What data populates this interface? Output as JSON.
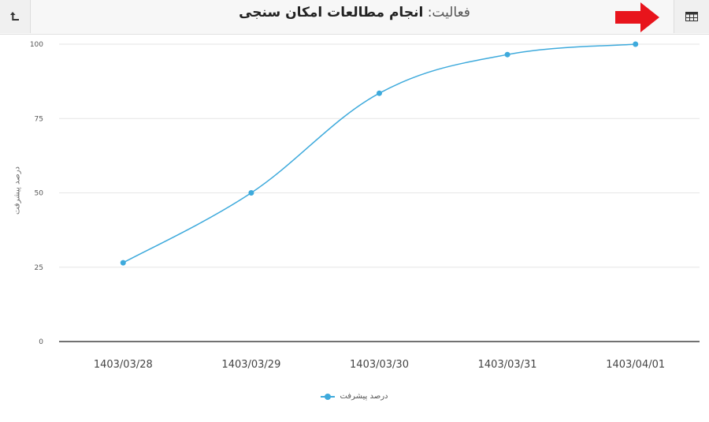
{
  "header": {
    "title_prefix": "فعالیت:",
    "title_name": "انجام مطالعات امکان سنجی",
    "back_icon": "return-icon",
    "table_icon": "table-icon",
    "arrow_color": "#e8141c"
  },
  "chart_data": {
    "type": "line",
    "categories": [
      "1403/03/28",
      "1403/03/29",
      "1403/03/30",
      "1403/03/31",
      "1403/04/01"
    ],
    "series": [
      {
        "name": "درصد پیشرفت",
        "values": [
          26.5,
          50,
          83.5,
          96.5,
          100
        ],
        "color": "#3eaadc"
      }
    ],
    "ylabel": "درصد پیشرفت",
    "xlabel": "",
    "ylim": [
      0,
      100
    ],
    "yticks": [
      0,
      25,
      50,
      75,
      100
    ],
    "grid": true,
    "legend": "bottom",
    "smooth": true
  }
}
